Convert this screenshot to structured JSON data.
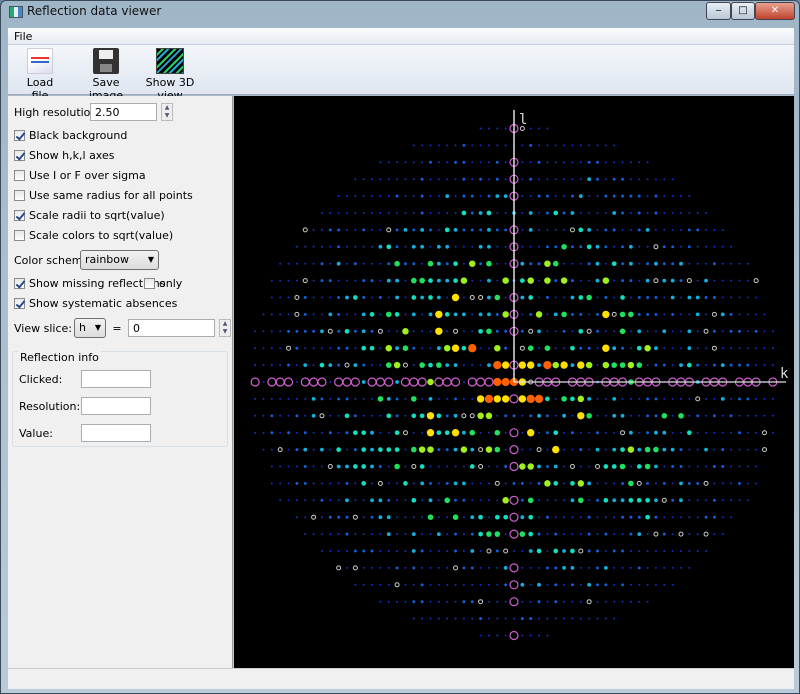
{
  "window": {
    "title": "Reflection data viewer",
    "minimize": "‒",
    "maximize": "□",
    "close": "✕"
  },
  "menu": {
    "file": "File"
  },
  "toolbar": {
    "load": "Load file",
    "save": "Save image",
    "show3d": "Show 3D view"
  },
  "controls": {
    "high_res_label": "High resolution:",
    "high_res_value": "2.50",
    "black_bg": "Black background",
    "show_axes": "Show h,k,l axes",
    "i_over_sigma": "Use I or F over sigma",
    "same_radius": "Use same radius for all points",
    "scale_radii": "Scale radii to sqrt(value)",
    "scale_colors": "Scale colors to sqrt(value)",
    "color_scheme_label": "Color scheme:",
    "color_scheme_value": "rainbow",
    "show_missing": "Show missing reflections",
    "only": "only",
    "show_absences": "Show systematic absences",
    "view_slice_label": "View slice:",
    "slice_axis": "h",
    "equals": "=",
    "slice_value": "0",
    "checked": {
      "black_bg": true,
      "show_axes": true,
      "i_over_sigma": false,
      "same_radius": false,
      "scale_radii": true,
      "scale_colors": false,
      "show_missing": true,
      "only": false,
      "show_absences": true
    }
  },
  "reflection_info": {
    "title": "Reflection info",
    "clicked_label": "Clicked:",
    "resolution_label": "Resolution:",
    "value_label": "Value:",
    "clicked": "",
    "resolution": "",
    "value": ""
  },
  "plot": {
    "axis_vertical": "l",
    "axis_horizontal": "k",
    "palette": [
      "#1030c0",
      "#1060e0",
      "#10b0e0",
      "#10e0c0",
      "#20e060",
      "#a0f020",
      "#ffe000",
      "#ff6000",
      "#ff1000"
    ],
    "missing_color": "#d060d0",
    "axis_color": "#ffffff"
  }
}
